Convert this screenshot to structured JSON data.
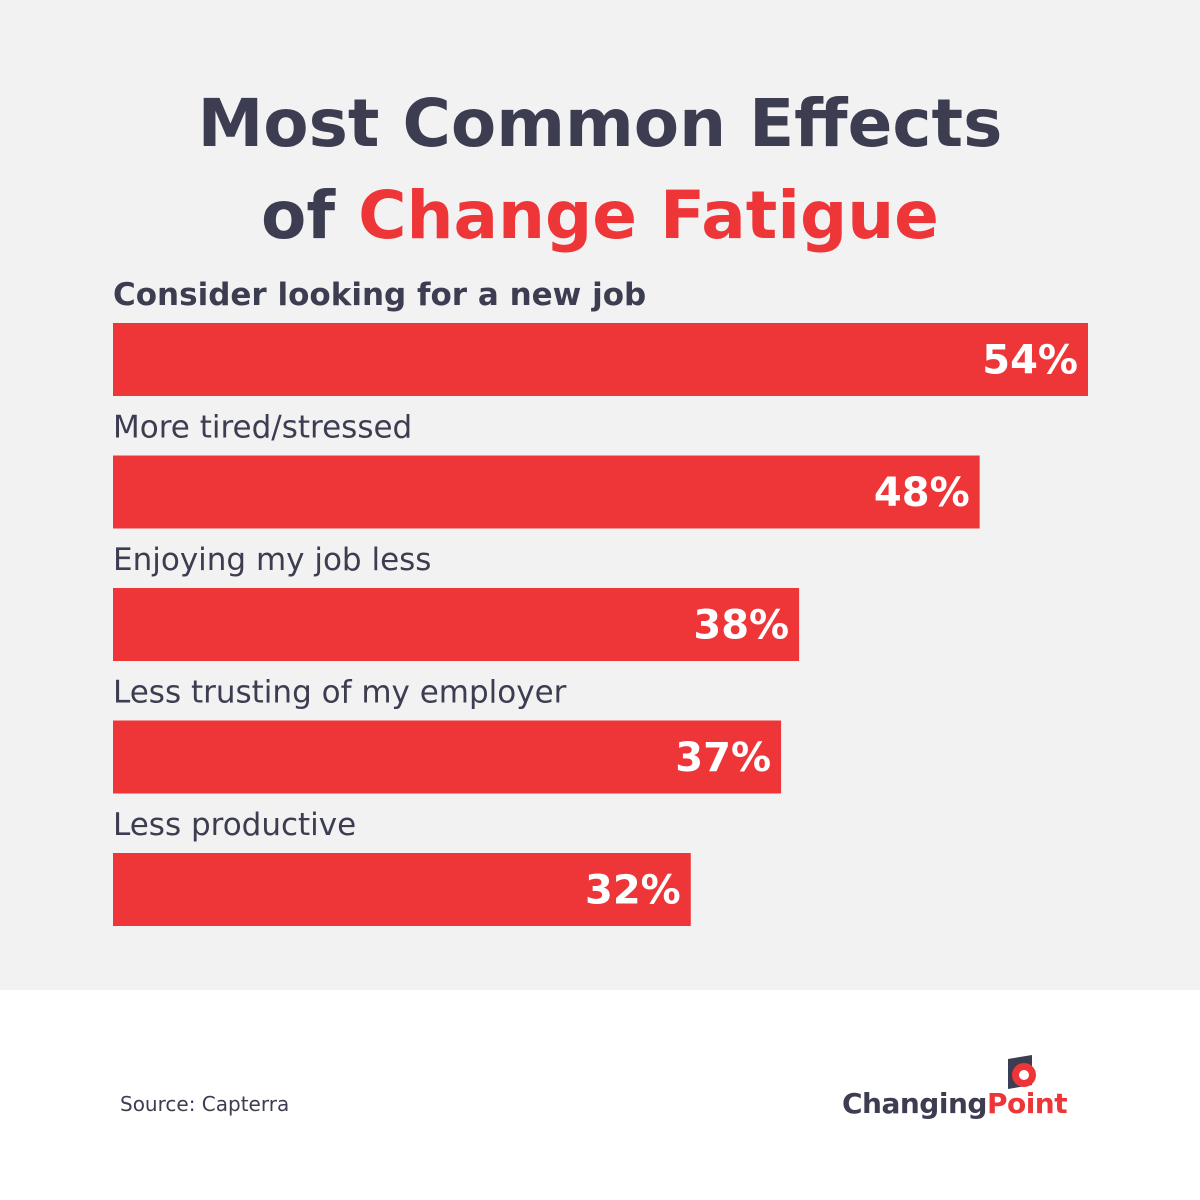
{
  "title": {
    "line1": "Most Common Effects",
    "line2_prefix": "of ",
    "line2_accent": "Change Fatigue"
  },
  "chart_data": {
    "type": "bar",
    "orientation": "horizontal",
    "title": "Most Common Effects of Change Fatigue",
    "categories": [
      "Consider looking for a new job",
      "More tired/stressed",
      "Enjoying my job less",
      "Less trusting of my employer",
      "Less productive"
    ],
    "values": [
      54,
      48,
      38,
      37,
      32
    ],
    "value_labels": [
      "54%",
      "48%",
      "38%",
      "37%",
      "32%"
    ],
    "unit": "%",
    "xlim": [
      0,
      54
    ],
    "grid": false,
    "bar_color": "#ee3639",
    "value_label_color": "#ffffff"
  },
  "source": "Source: Capterra",
  "logo": {
    "part1": "Changing",
    "part2": "Point",
    "icon": "changingpoint-logo-icon"
  },
  "colors": {
    "accent": "#ee3639",
    "text": "#3d3d52",
    "panel": "#f2f2f2"
  }
}
